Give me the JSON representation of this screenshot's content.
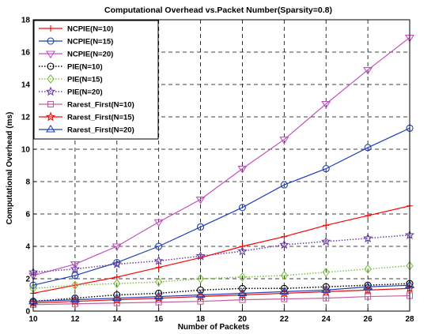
{
  "chart_data": {
    "type": "line",
    "title": "Computational Overhead  vs.Packet Number(Sparsity=0.8)",
    "xlabel": "Number of Packets",
    "ylabel": "Computational Overhead (ms)",
    "xlim": [
      10,
      28
    ],
    "ylim": [
      0,
      18
    ],
    "x_ticks": [
      10,
      12,
      14,
      16,
      18,
      20,
      22,
      24,
      26,
      28
    ],
    "y_ticks": [
      0,
      2,
      4,
      6,
      8,
      10,
      12,
      14,
      16,
      18
    ],
    "grid": true,
    "legend_position": "top-left",
    "x": [
      10,
      12,
      14,
      16,
      18,
      20,
      22,
      24,
      26,
      28
    ],
    "series": [
      {
        "name": "NCPIE(N=10)",
        "color": "#ff0000",
        "line": "solid",
        "marker": "plus",
        "values": [
          1.1,
          1.6,
          2.1,
          2.7,
          3.3,
          4.0,
          4.6,
          5.3,
          5.9,
          6.5
        ]
      },
      {
        "name": "NCPIE(N=15)",
        "color": "#1f3fb4",
        "line": "solid",
        "marker": "circle",
        "values": [
          1.6,
          2.2,
          3.0,
          4.0,
          5.2,
          6.4,
          7.8,
          8.8,
          10.1,
          11.3
        ]
      },
      {
        "name": "NCPIE(N=20)",
        "color": "#c050c0",
        "line": "solid",
        "marker": "triangle-down",
        "values": [
          2.2,
          2.9,
          4.0,
          5.5,
          6.9,
          8.8,
          10.6,
          12.8,
          14.9,
          16.9
        ]
      },
      {
        "name": "PIE(N=10)",
        "color": "#000000",
        "line": "dotted",
        "marker": "circle",
        "values": [
          0.6,
          0.8,
          1.0,
          1.1,
          1.3,
          1.4,
          1.4,
          1.5,
          1.6,
          1.7
        ]
      },
      {
        "name": "PIE(N=15)",
        "color": "#7fc241",
        "line": "dotted",
        "marker": "diamond",
        "values": [
          1.4,
          1.6,
          1.7,
          1.8,
          2.0,
          2.1,
          2.2,
          2.4,
          2.6,
          2.8
        ]
      },
      {
        "name": "PIE(N=20)",
        "color": "#6a3fa0",
        "line": "dotted",
        "marker": "star",
        "values": [
          2.4,
          2.6,
          2.9,
          3.1,
          3.4,
          3.7,
          4.1,
          4.3,
          4.5,
          4.7
        ]
      },
      {
        "name": "Rarest_First(N=10)",
        "color": "#c060a0",
        "line": "solid",
        "marker": "square",
        "values": [
          0.4,
          0.45,
          0.5,
          0.55,
          0.6,
          0.7,
          0.75,
          0.8,
          0.9,
          0.95
        ]
      },
      {
        "name": "Rarest_First(N=15)",
        "color": "#e01010",
        "line": "solid",
        "marker": "star",
        "values": [
          0.5,
          0.6,
          0.7,
          0.8,
          0.9,
          1.0,
          1.1,
          1.2,
          1.3,
          1.4
        ]
      },
      {
        "name": "Rarest_First(N=20)",
        "color": "#1f3fb4",
        "line": "solid",
        "marker": "triangle-up",
        "values": [
          0.6,
          0.7,
          0.8,
          0.9,
          1.0,
          1.1,
          1.2,
          1.3,
          1.5,
          1.6
        ]
      }
    ]
  }
}
